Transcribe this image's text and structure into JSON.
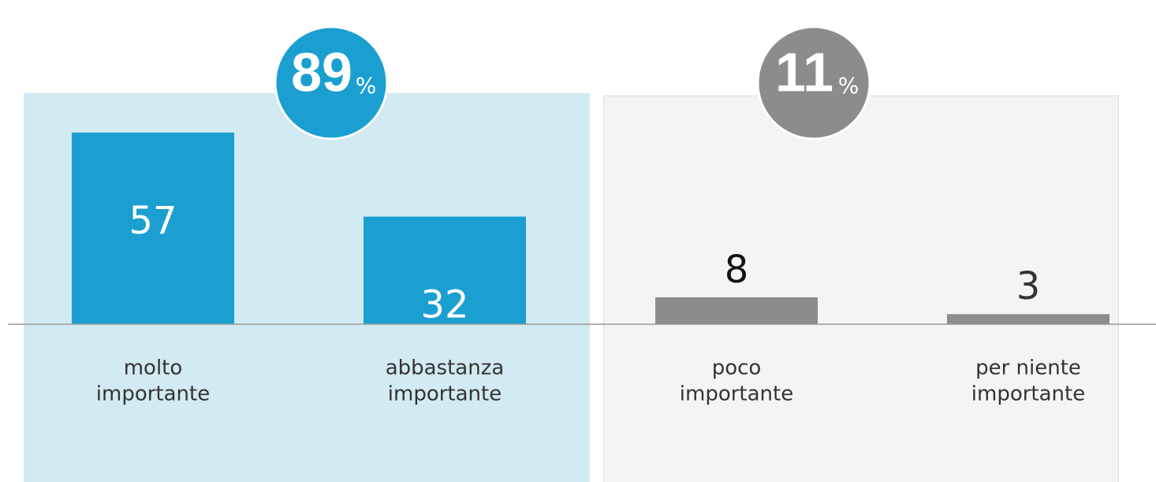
{
  "chart_data": {
    "type": "bar",
    "categories": [
      [
        "molto",
        "importante"
      ],
      [
        "abbastanza",
        "importante"
      ],
      [
        "poco",
        "importante"
      ],
      [
        "per niente",
        "importante"
      ]
    ],
    "values": [
      57,
      32,
      8,
      3
    ],
    "colors": [
      "#1b9fd0",
      "#1b9fd0",
      "#8c8c8c",
      "#8c8c8c"
    ],
    "groups": [
      {
        "value": 89,
        "unit": "%",
        "color": "#1b9fd0"
      },
      {
        "value": 11,
        "unit": "%",
        "color": "#8c8c8c"
      }
    ]
  }
}
